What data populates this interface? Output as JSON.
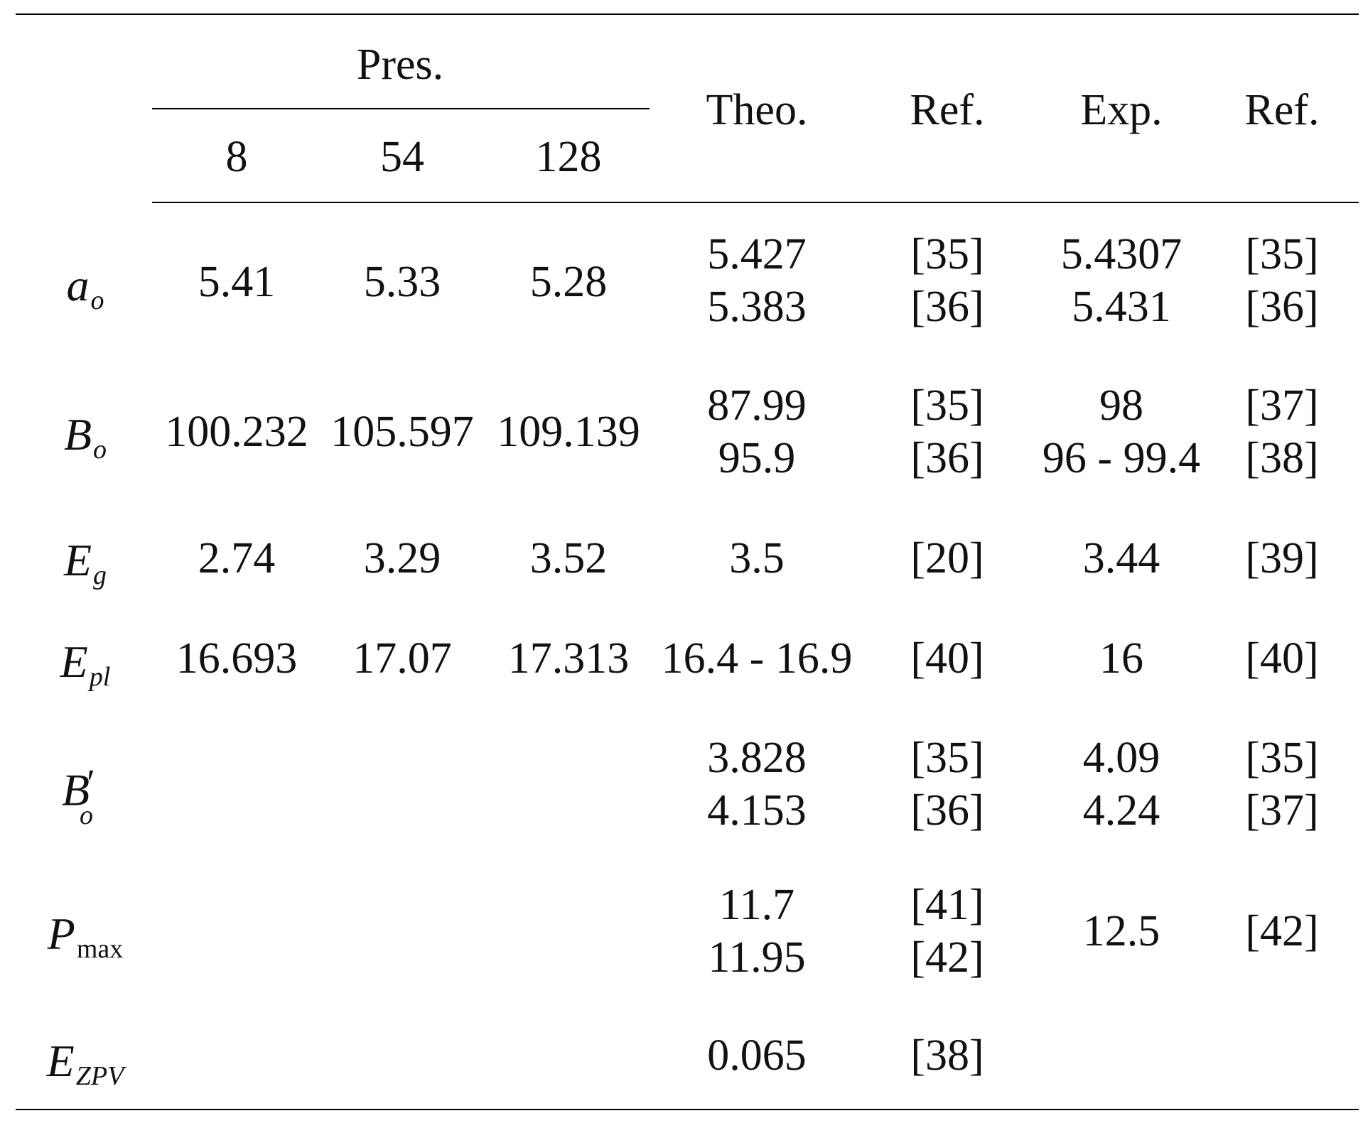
{
  "table": {
    "header": {
      "group": "Pres.",
      "sizes": [
        "8",
        "54",
        "128"
      ],
      "theo": "Theo.",
      "ref1": "Ref.",
      "exp": "Exp.",
      "ref2": "Ref."
    },
    "rows": [
      {
        "symbol": "a",
        "sub": "o",
        "pres": [
          "5.41",
          "5.33",
          "5.28"
        ],
        "theo": [
          "5.427",
          "5.383"
        ],
        "theo_ref": [
          "[35]",
          "[36]"
        ],
        "exp": [
          "5.4307",
          "5.431"
        ],
        "exp_ref": [
          "[35]",
          "[36]"
        ]
      },
      {
        "symbol": "B",
        "sub": "o",
        "pres": [
          "100.232",
          "105.597",
          "109.139"
        ],
        "theo": [
          "87.99",
          "95.9"
        ],
        "theo_ref": [
          "[35]",
          "[36]"
        ],
        "exp": [
          "98",
          "96 - 99.4"
        ],
        "exp_ref": [
          "[37]",
          "[38]"
        ]
      },
      {
        "symbol": "E",
        "sub": "g",
        "pres": [
          "2.74",
          "3.29",
          "3.52"
        ],
        "theo": [
          "3.5"
        ],
        "theo_ref": [
          "[20]"
        ],
        "exp": [
          "3.44"
        ],
        "exp_ref": [
          "[39]"
        ]
      },
      {
        "symbol": "E",
        "sub": "pl",
        "pres": [
          "16.693",
          "17.07",
          "17.313"
        ],
        "theo": [
          "16.4 - 16.9"
        ],
        "theo_ref": [
          "[40]"
        ],
        "exp": [
          "16"
        ],
        "exp_ref": [
          "[40]"
        ]
      },
      {
        "symbol": "B",
        "sub": "o",
        "prime": "′",
        "pres": [],
        "theo": [
          "3.828",
          "4.153"
        ],
        "theo_ref": [
          "[35]",
          "[36]"
        ],
        "exp": [
          "4.09",
          "4.24"
        ],
        "exp_ref": [
          "[35]",
          "[37]"
        ]
      },
      {
        "symbol": "P",
        "sub": "max",
        "pres": [],
        "theo": [
          "11.7",
          "11.95"
        ],
        "theo_ref": [
          "[41]",
          "[42]"
        ],
        "exp": [
          "12.5"
        ],
        "exp_ref": [
          "[42]"
        ]
      },
      {
        "symbol": "E",
        "sub": "ZPV",
        "pres": [],
        "theo": [
          "0.065"
        ],
        "theo_ref": [
          "[38]"
        ],
        "exp": [],
        "exp_ref": []
      }
    ]
  }
}
